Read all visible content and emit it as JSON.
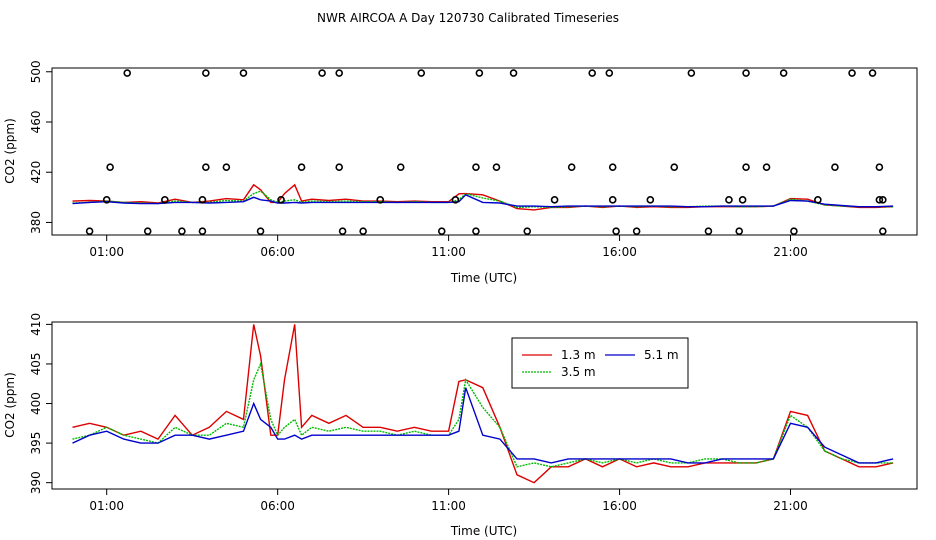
{
  "chart_data": [
    {
      "type": "scatter+line",
      "title": "NWR AIRCOA A  Day 120730  Calibrated Timeseries",
      "xlabel": "Time (UTC)",
      "ylabel": "CO2 (ppm)",
      "xlim": [
        -0.6,
        24.7
      ],
      "ylim": [
        370,
        503
      ],
      "x_ticks": [
        1,
        6,
        11,
        16,
        21
      ],
      "x_tick_labels": [
        "01:00",
        "06:00",
        "11:00",
        "16:00",
        "21:00"
      ],
      "y_ticks": [
        380,
        420,
        460,
        500
      ],
      "y_tick_labels": [
        "380",
        "420",
        "460",
        "500"
      ],
      "series_colors": {
        "1.3 m": "#dd0000",
        "3.5 m": "#00bb00",
        "5.1 m": "#0000cc"
      },
      "line_series_note": "same three series as lower panel",
      "scatter_points": {
        "name": "calibration",
        "x": [
          0.5,
          1.0,
          1.6,
          1.1,
          2.2,
          2.7,
          3.2,
          3.8,
          3.9,
          3.9,
          3.8,
          4.5,
          5.0,
          5.5,
          6.1,
          6.7,
          7.3,
          7.8,
          7.8,
          7.9,
          8.5,
          9.0,
          9.6,
          10.2,
          10.8,
          11.2,
          11.8,
          11.8,
          11.9,
          12.4,
          12.9,
          13.3,
          14.1,
          14.6,
          15.2,
          15.7,
          15.8,
          15.8,
          15.9,
          16.5,
          16.9,
          17.6,
          18.1,
          18.6,
          19.2,
          19.5,
          19.6,
          19.7,
          19.7,
          20.3,
          20.8,
          21.1,
          21.8,
          22.3,
          22.8,
          23.4,
          23.6,
          23.6,
          23.7,
          23.7
        ],
        "y": [
          373,
          398,
          499,
          424,
          373,
          398,
          373,
          398,
          424,
          499,
          373,
          424,
          499,
          373,
          398,
          424,
          499,
          499,
          424,
          373,
          373,
          398,
          424,
          499,
          373,
          398,
          373,
          424,
          499,
          424,
          499,
          373,
          398,
          424,
          499,
          499,
          424,
          398,
          373,
          373,
          398,
          424,
          499,
          373,
          398,
          373,
          398,
          424,
          499,
          424,
          499,
          373,
          398,
          424,
          499,
          499,
          424,
          398,
          373,
          398
        ]
      }
    },
    {
      "type": "line",
      "xlabel": "Time (UTC)",
      "ylabel": "CO2 (ppm)",
      "xlim": [
        -0.6,
        24.7
      ],
      "ylim": [
        389.2,
        410.3
      ],
      "x_ticks": [
        1,
        6,
        11,
        16,
        21
      ],
      "x_tick_labels": [
        "01:00",
        "06:00",
        "11:00",
        "16:00",
        "21:00"
      ],
      "y_ticks": [
        390,
        395,
        400,
        405,
        410
      ],
      "y_tick_labels": [
        "390",
        "395",
        "400",
        "405",
        "410"
      ],
      "legend": {
        "placement": "top-center",
        "entries": [
          "1.3 m",
          "3.5 m",
          "5.1 m"
        ]
      },
      "series": [
        {
          "name": "1.3 m",
          "color": "#dd0000",
          "x": [
            0,
            0.5,
            1,
            1.5,
            2,
            2.5,
            3,
            3.5,
            4,
            4.5,
            5,
            5.3,
            5.5,
            5.8,
            6,
            6.2,
            6.5,
            6.7,
            7,
            7.5,
            8,
            8.5,
            9,
            9.5,
            10,
            10.5,
            11,
            11.3,
            11.5,
            12,
            12.5,
            13,
            13.5,
            14,
            14.5,
            15,
            15.5,
            16,
            16.5,
            17,
            17.5,
            18,
            18.5,
            19,
            19.5,
            20,
            20.5,
            21,
            21.5,
            22,
            22.5,
            23,
            23.5,
            24
          ],
          "values": [
            397,
            397.5,
            397,
            396,
            396.5,
            395.5,
            398.5,
            396,
            397,
            399,
            398,
            410,
            406,
            396,
            396,
            403,
            410,
            397,
            398.5,
            397.5,
            398.5,
            397,
            397,
            396.5,
            397,
            396.5,
            396.5,
            402.8,
            403,
            402,
            397,
            391,
            390,
            392,
            392,
            393,
            392,
            393,
            392,
            392.5,
            392,
            392,
            392.5,
            392.5,
            392.5,
            392.5,
            393,
            399,
            398.5,
            394,
            393,
            392,
            392,
            392.5
          ]
        },
        {
          "name": "3.5 m",
          "color": "#00bb00",
          "x": [
            0,
            0.5,
            1,
            1.5,
            2,
            2.5,
            3,
            3.5,
            4,
            4.5,
            5,
            5.3,
            5.5,
            5.8,
            6,
            6.2,
            6.5,
            6.7,
            7,
            7.5,
            8,
            8.5,
            9,
            9.5,
            10,
            10.5,
            11,
            11.3,
            11.5,
            12,
            12.5,
            13,
            13.5,
            14,
            14.5,
            15,
            15.5,
            16,
            16.5,
            17,
            17.5,
            18,
            18.5,
            19,
            19.5,
            20,
            20.5,
            21,
            21.5,
            22,
            22.5,
            23,
            23.5,
            24
          ],
          "values": [
            395.5,
            396,
            397,
            396,
            395.5,
            395,
            397,
            396,
            396,
            397.5,
            397,
            403,
            405,
            398,
            396,
            397,
            398,
            396,
            397,
            396.5,
            397,
            396.5,
            396.5,
            396,
            396.5,
            396,
            396,
            398,
            403,
            399.5,
            397,
            392,
            392.5,
            392,
            392.5,
            393,
            392.5,
            393,
            392.5,
            393,
            392.5,
            392.5,
            393,
            393,
            392.5,
            392.5,
            393,
            398.5,
            397,
            394,
            393,
            392.5,
            392.5,
            392.5
          ]
        },
        {
          "name": "5.1 m",
          "color": "#0000cc",
          "x": [
            0,
            0.5,
            1,
            1.5,
            2,
            2.5,
            3,
            3.5,
            4,
            4.5,
            5,
            5.3,
            5.5,
            5.8,
            6,
            6.2,
            6.5,
            6.7,
            7,
            7.5,
            8,
            8.5,
            9,
            9.5,
            10,
            10.5,
            11,
            11.3,
            11.5,
            12,
            12.5,
            13,
            13.5,
            14,
            14.5,
            15,
            15.5,
            16,
            16.5,
            17,
            17.5,
            18,
            18.5,
            19,
            19.5,
            20,
            20.5,
            21,
            21.5,
            22,
            22.5,
            23,
            23.5,
            24
          ],
          "values": [
            395,
            396,
            396.5,
            395.5,
            395,
            395,
            396,
            396,
            395.5,
            396,
            396.5,
            400,
            398,
            397,
            395.5,
            395.5,
            396,
            395.5,
            396,
            396,
            396,
            396,
            396,
            396,
            396,
            396,
            396,
            396.5,
            402,
            396,
            395.5,
            393,
            393,
            392.5,
            393,
            393,
            393,
            393,
            393,
            393,
            393,
            392.5,
            392.5,
            393,
            393,
            393,
            393,
            397.5,
            397,
            394.5,
            393.5,
            392.5,
            392.5,
            393
          ]
        }
      ]
    }
  ]
}
